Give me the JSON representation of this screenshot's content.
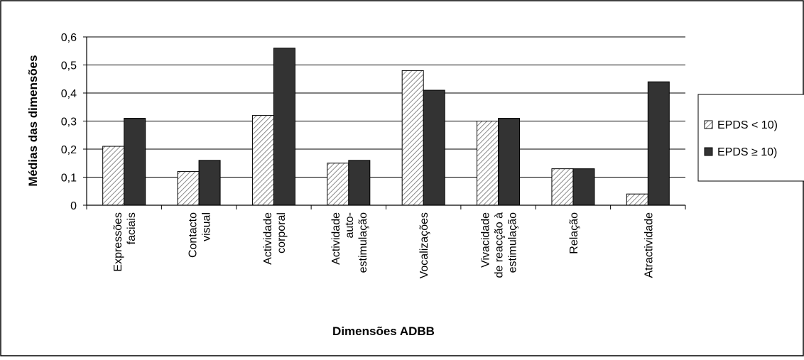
{
  "chart_data": {
    "type": "bar",
    "title": "",
    "xlabel": "Dimensões ADBB",
    "ylabel": "Médias das dimensões",
    "ylim": [
      0,
      0.6
    ],
    "yticks": [
      "0",
      "0,1",
      "0,2",
      "0,3",
      "0,4",
      "0,5",
      "0,6"
    ],
    "grid": true,
    "legend_position": "right",
    "categories": [
      [
        "Expressões",
        "faciais"
      ],
      [
        "Contacto",
        "visual"
      ],
      [
        "Actividade",
        "corporal"
      ],
      [
        "Actividade",
        "auto-",
        "estimulação"
      ],
      [
        "Vocalizações"
      ],
      [
        "Vivacidade",
        "de reacção à",
        "estimulação"
      ],
      [
        "Relação"
      ],
      [
        "Atractividade"
      ]
    ],
    "series": [
      {
        "name": "EPDS < 10)",
        "values": [
          0.21,
          0.12,
          0.32,
          0.15,
          0.48,
          0.3,
          0.13,
          0.04
        ],
        "color": "#d9d9d9",
        "pattern": "diagonal-hatch"
      },
      {
        "name": "EPDS ≥ 10)",
        "values": [
          0.31,
          0.16,
          0.56,
          0.16,
          0.41,
          0.31,
          0.13,
          0.44
        ],
        "color": "#333333",
        "pattern": "solid"
      }
    ]
  }
}
